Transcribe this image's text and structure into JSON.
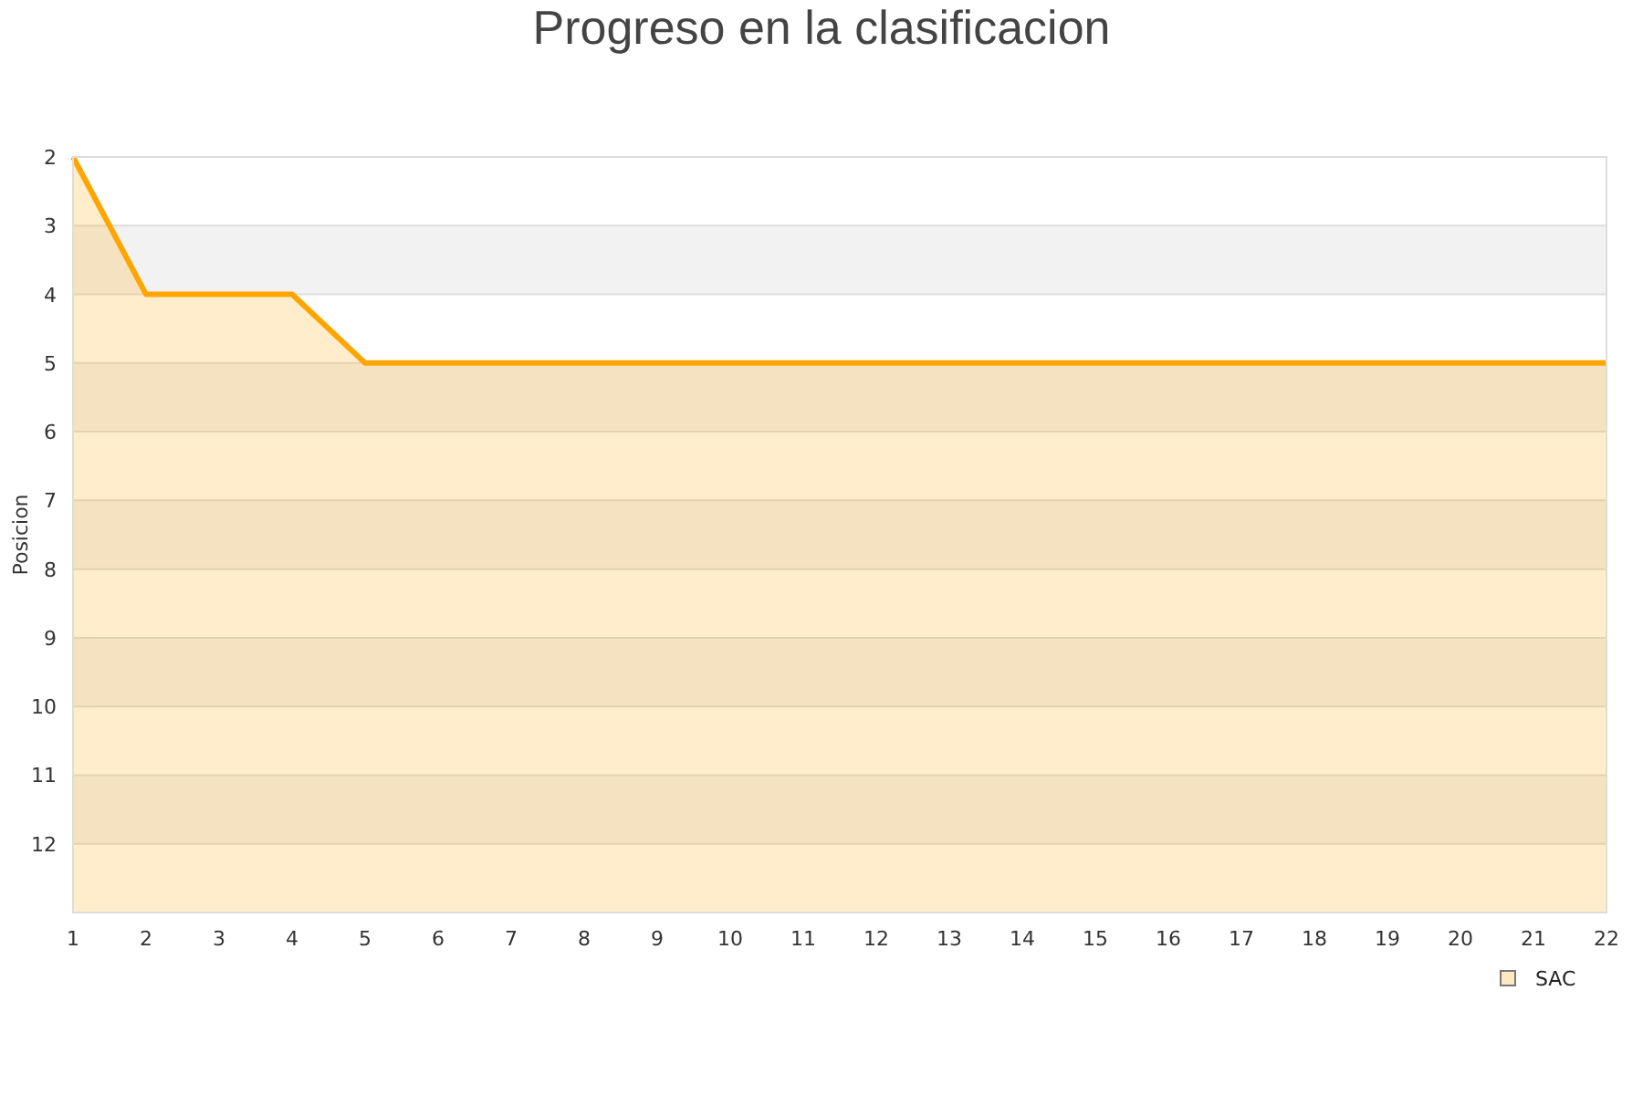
{
  "chart_data": {
    "type": "area",
    "title": "Progreso en la clasificacion",
    "ylabel": "Posicion",
    "x": [
      1,
      2,
      3,
      4,
      5,
      6,
      7,
      8,
      9,
      10,
      11,
      12,
      13,
      14,
      15,
      16,
      17,
      18,
      19,
      20,
      21,
      22
    ],
    "series": [
      {
        "name": "SAC",
        "color": "#ffa500",
        "values": [
          2,
          4,
          4,
          4,
          5,
          5,
          5,
          5,
          5,
          5,
          5,
          5,
          5,
          5,
          5,
          5,
          5,
          5,
          5,
          5,
          5,
          5
        ]
      }
    ],
    "xlim": [
      1,
      22
    ],
    "xticks": [
      1,
      2,
      3,
      4,
      5,
      6,
      7,
      8,
      9,
      10,
      11,
      12,
      13,
      14,
      15,
      16,
      17,
      18,
      19,
      20,
      21,
      22
    ],
    "ylim": [
      13,
      2
    ],
    "yticks": [
      2,
      3,
      4,
      5,
      6,
      7,
      8,
      9,
      10,
      11,
      12
    ],
    "grid": true,
    "legend": "bottom right",
    "marker": "none",
    "line_style": "solid"
  }
}
